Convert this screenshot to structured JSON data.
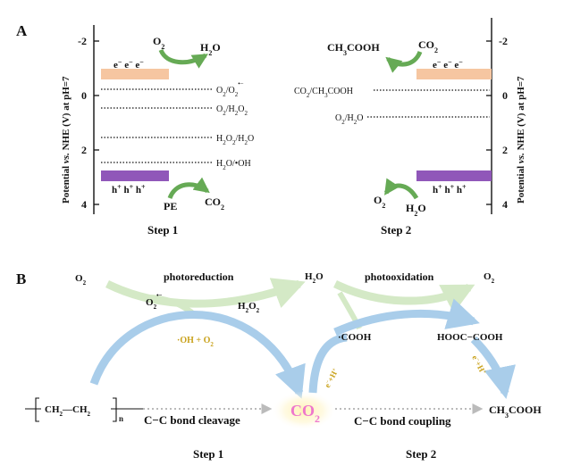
{
  "panel_a": {
    "label": "A",
    "y_axis_title_1": "Potential",
    "y_axis_title_vs": "vs.",
    "y_axis_title_2": "NHE (V) at pH=7",
    "ticks": [
      "-2",
      "0",
      "2",
      "4"
    ],
    "step1": {
      "caption": "Step 1",
      "o2": "O",
      "o2_sub": "2",
      "h2o": "H",
      "h2o_sub": "2",
      "h2o_tail": "O",
      "electrons": [
        "e",
        "e",
        "e"
      ],
      "holes": [
        "h",
        "h",
        "h"
      ],
      "pe": "PE",
      "co2": "CO",
      "co2_sub": "2",
      "levels": [
        {
          "a": "O",
          "a_sub": "2",
          "sep": "/O",
          "b_sub": "2",
          "b_sup": "•−"
        },
        {
          "a": "O",
          "a_sub": "2",
          "sep": "/H",
          "b_sub": "2",
          "tail": "O",
          "tail_sub": "2"
        },
        {
          "a": "H",
          "a_sub": "2",
          "mid": "O",
          "mid_sub": "2",
          "sep": "/H",
          "b_sub": "2",
          "tail": "O"
        },
        {
          "a": "H",
          "a_sub": "2",
          "mid": "O/•OH"
        }
      ]
    },
    "step2": {
      "caption": "Step 2",
      "ch3cooh": "CH",
      "ch3_sub": "3",
      "cooh": "COOH",
      "co2": "CO",
      "co2_sub": "2",
      "electrons": [
        "e",
        "e",
        "e"
      ],
      "holes": [
        "h",
        "h",
        "h"
      ],
      "o2": "O",
      "o2_sub": "2",
      "h2o": "H",
      "h2o_sub": "2",
      "h2o_tail": "O",
      "level_1": {
        "a": "CO",
        "a_sub": "2",
        "b": "/CH",
        "b_sub": "3",
        "tail": "COOH"
      },
      "level_2": {
        "a": "O",
        "a_sub": "2",
        "b": "/H",
        "b_sub": "2",
        "tail": "O"
      }
    },
    "colors": {
      "cb": "#f6c6a1",
      "vb": "#9057b9",
      "arrow": "#66aa55"
    }
  },
  "panel_b": {
    "label": "B",
    "o2_left": "O",
    "o2_left_sub": "2",
    "photoreduction": "photoreduction",
    "superoxide": "O",
    "superoxide_sub": "2",
    "superoxide_sup": "•−",
    "h2o2": "H",
    "h2o2_sub": "2",
    "h2o2_mid": "O",
    "h2o2_sub2": "2",
    "h2o": "H",
    "h2o_sub": "2",
    "h2o_tail": "O",
    "photooxidation": "photooxidation",
    "o2_right": "O",
    "o2_right_sub": "2",
    "oh_o2": "·OH + O",
    "oh_o2_sub": "2",
    "cooh_radical": "·COOH",
    "oxalic": "HOOC−COOH",
    "e_h_1": "e",
    "e_h_2": "e",
    "polymer_1": "CH",
    "polymer_sub1": "2",
    "polymer_dash": "—CH",
    "polymer_sub2": "2",
    "polymer_n": "n",
    "cleavage": "C−C bond cleavage",
    "co2_center": "CO",
    "co2_center_sub": "2",
    "coupling": "C−C bond coupling",
    "acetic": "CH",
    "acetic_sub": "3",
    "acetic_tail": "COOH",
    "step1": "Step 1",
    "step2": "Step 2",
    "colors": {
      "blue_arrow": "#a9cdea",
      "green_arrow": "#d4e9c6",
      "co2": "#ee77cc",
      "gold": "#c9a21c"
    }
  }
}
